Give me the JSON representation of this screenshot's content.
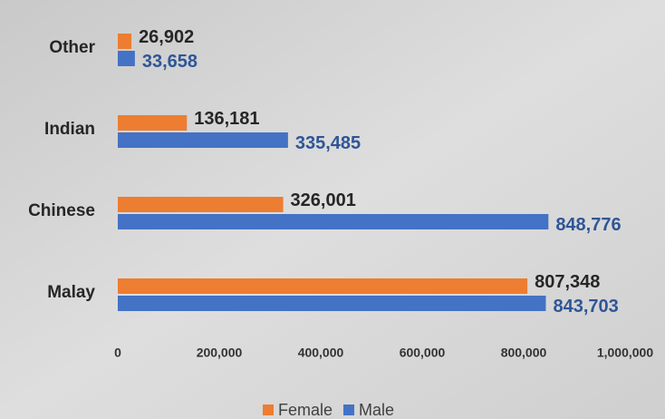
{
  "chart_data": {
    "type": "hbar",
    "categories": [
      "Other",
      "Indian",
      "Chinese",
      "Malay"
    ],
    "series": [
      {
        "name": "Female",
        "color": "#ed7d31",
        "label_color": "#262626",
        "values": [
          26902,
          136181,
          326001,
          807348
        ],
        "value_labels": [
          "26,902",
          "136,181",
          "326,001",
          "807,348"
        ]
      },
      {
        "name": "Male",
        "color": "#4472c4",
        "label_color": "#2f5597",
        "values": [
          33658,
          335485,
          848776,
          843703
        ],
        "value_labels": [
          "33,658",
          "335,485",
          "848,776",
          "843,703"
        ]
      }
    ],
    "xlim": [
      0,
      1000000
    ],
    "xticks": [
      0,
      {
        "value": 200000,
        "label": "200,000"
      },
      {
        "value": 400000,
        "label": "400,000"
      },
      {
        "value": 600000,
        "label": "600,000"
      },
      {
        "value": 800000,
        "label": "800,000"
      },
      {
        "value": 1000000,
        "label": "1,000,000"
      }
    ],
    "legend": "bottom"
  }
}
